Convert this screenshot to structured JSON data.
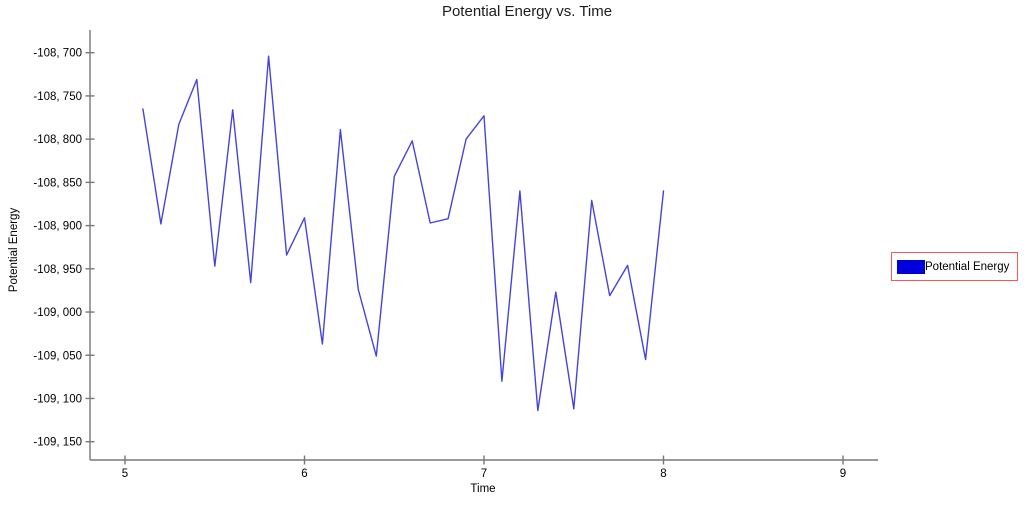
{
  "title": "Potential Energy vs. Time",
  "x_axis": {
    "label": "Time",
    "ticks": [
      {
        "value": 5,
        "label": "5"
      },
      {
        "value": 6,
        "label": "6"
      },
      {
        "value": 7,
        "label": "7"
      },
      {
        "value": 8,
        "label": "8"
      },
      {
        "value": 9,
        "label": "9"
      }
    ]
  },
  "y_axis": {
    "label": "Potential Energy",
    "ticks": [
      {
        "value": -108700,
        "label": "-108, 700"
      },
      {
        "value": -108750,
        "label": "-108, 750"
      },
      {
        "value": -108800,
        "label": "-108, 800"
      },
      {
        "value": -108850,
        "label": "-108, 850"
      },
      {
        "value": -108900,
        "label": "-108, 900"
      },
      {
        "value": -108950,
        "label": "-108, 950"
      },
      {
        "value": -109000,
        "label": "-109, 000"
      },
      {
        "value": -109050,
        "label": "-109, 050"
      },
      {
        "value": -109100,
        "label": "-109, 100"
      },
      {
        "value": -109150,
        "label": "-109, 150"
      }
    ]
  },
  "legend": {
    "label": "Potential Energy",
    "swatch_color": "#0000dd",
    "border_color": "#ff5555"
  },
  "colors": {
    "line": "#4444dd",
    "axis": "#787878",
    "text": "#000000",
    "background": "#ffffff"
  },
  "chart_data": {
    "type": "line",
    "title": "Potential Energy vs. Time",
    "xlabel": "Time",
    "ylabel": "Potential Energy",
    "xlim": [
      4.81,
      9.2
    ],
    "ylim": [
      -109170,
      -108675
    ],
    "grid": false,
    "legend_position": "right",
    "series": [
      {
        "name": "Potential Energy",
        "color": "#4444dd",
        "x": [
          5.1,
          5.2,
          5.3,
          5.4,
          5.5,
          5.6,
          5.7,
          5.8,
          5.9,
          6.0,
          6.1,
          6.2,
          6.3,
          6.4,
          6.5,
          6.6,
          6.7,
          6.8,
          6.9,
          7.0,
          7.1,
          7.2,
          7.3,
          7.4,
          7.5,
          7.6,
          7.7,
          7.8,
          7.9,
          8.0
        ],
        "y": [
          -108765,
          -108898,
          -108783,
          -108731,
          -108947,
          -108766,
          -108966,
          -108704,
          -108934,
          -108891,
          -109037,
          -108789,
          -108974,
          -109051,
          -108843,
          -108802,
          -108897,
          -108892,
          -108800,
          -108773,
          -109080,
          -108860,
          -109114,
          -108977,
          -109112,
          -108871,
          -108981,
          -108946,
          -109055,
          -108860
        ]
      }
    ]
  }
}
